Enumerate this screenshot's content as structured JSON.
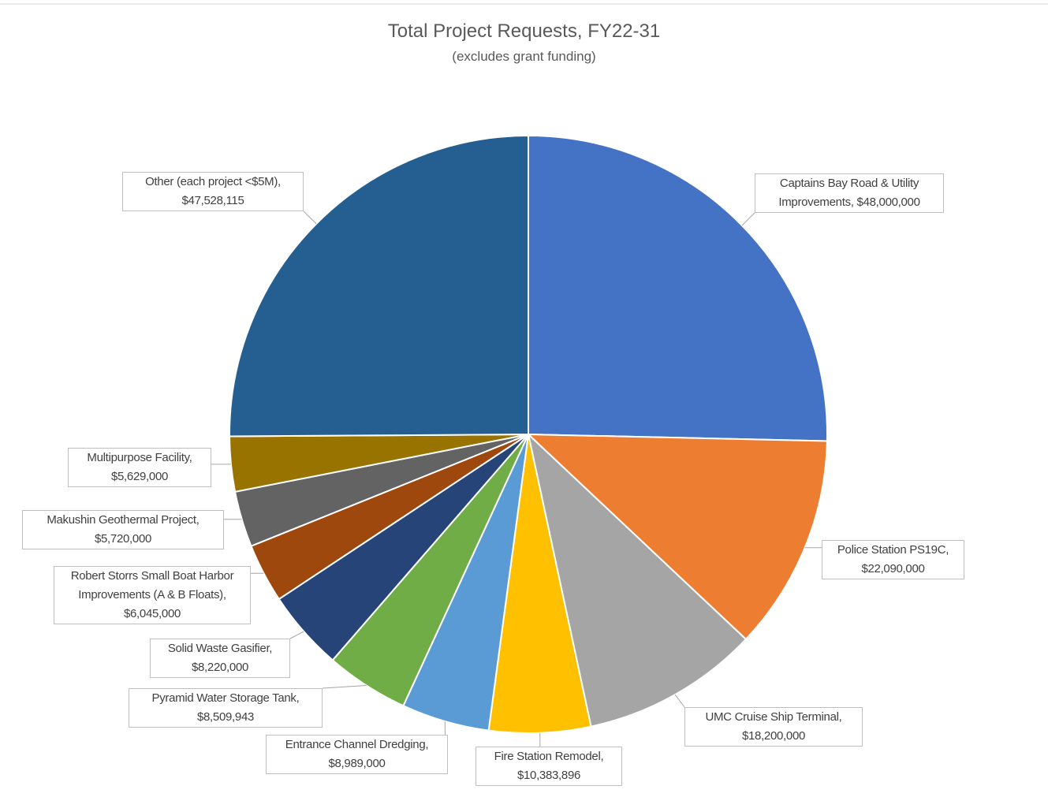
{
  "chart_data": {
    "type": "pie",
    "title": "Total Project Requests, FY22-31",
    "subtitle": "(excludes  grant funding)",
    "categories": [
      "Captains Bay Road & Utility Improvements,",
      "Police Station PS19C,",
      "UMC Cruise Ship Terminal,",
      "Fire Station Remodel,",
      "Entrance Channel Dredging,",
      "Pyramid Water Storage Tank,",
      "Solid Waste Gasifier,",
      "Robert Storrs Small Boat Harbor Improvements (A & B Floats),",
      "Makushin Geothermal Project,",
      "Multipurpose Facility,",
      "Other (each project <$5M),"
    ],
    "values": [
      48000000,
      22090000,
      18200000,
      10383896,
      8989000,
      8509943,
      8220000,
      6045000,
      5720000,
      5629000,
      47528115
    ],
    "value_labels": [
      "$48,000,000",
      "$22,090,000",
      "$18,200,000",
      "$10,383,896",
      "$8,989,000",
      "$8,509,943",
      "$8,220,000",
      "$6,045,000",
      "$5,720,000",
      "$5,629,000",
      "$47,528,115"
    ],
    "colors": [
      "#4472c4",
      "#ed7d31",
      "#a5a5a5",
      "#ffc000",
      "#5b9bd5",
      "#70ad47",
      "#264478",
      "#9e480e",
      "#636363",
      "#997300",
      "#255e91"
    ]
  }
}
